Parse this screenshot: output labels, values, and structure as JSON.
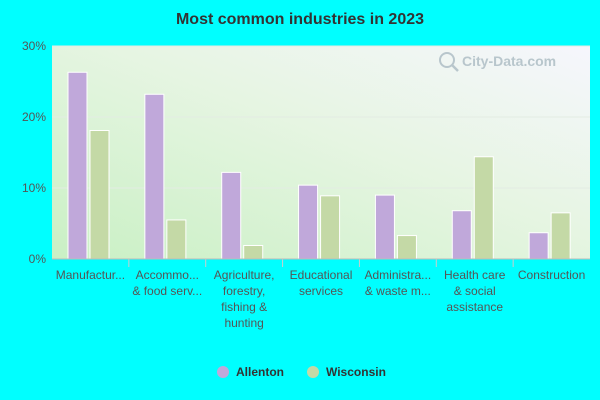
{
  "chart_data": {
    "type": "bar",
    "title": "Most common industries in 2023",
    "xlabel": "",
    "ylabel": "",
    "ylim": [
      0,
      30
    ],
    "yticks": [
      {
        "value": 0,
        "label": "0%"
      },
      {
        "value": 10,
        "label": "10%"
      },
      {
        "value": 20,
        "label": "20%"
      },
      {
        "value": 30,
        "label": "30%"
      }
    ],
    "categories": [
      [
        "Manufactur..."
      ],
      [
        "Accommo...",
        "& food serv..."
      ],
      [
        "Agriculture,",
        "forestry,",
        "fishing &",
        "hunting"
      ],
      [
        "Educational",
        "services"
      ],
      [
        "Administra...",
        "& waste m..."
      ],
      [
        "Health care",
        "& social",
        "assistance"
      ],
      [
        "Construction"
      ]
    ],
    "series": [
      {
        "name": "Allenton",
        "color": "#c0a8da",
        "values": [
          26.3,
          23.2,
          12.2,
          10.4,
          9.0,
          6.8,
          3.7
        ]
      },
      {
        "name": "Wisconsin",
        "color": "#c4d9a6",
        "values": [
          18.1,
          5.5,
          1.9,
          8.9,
          3.3,
          14.4,
          6.5
        ]
      }
    ],
    "legend_position": "bottom",
    "watermark": "City-Data.com"
  }
}
